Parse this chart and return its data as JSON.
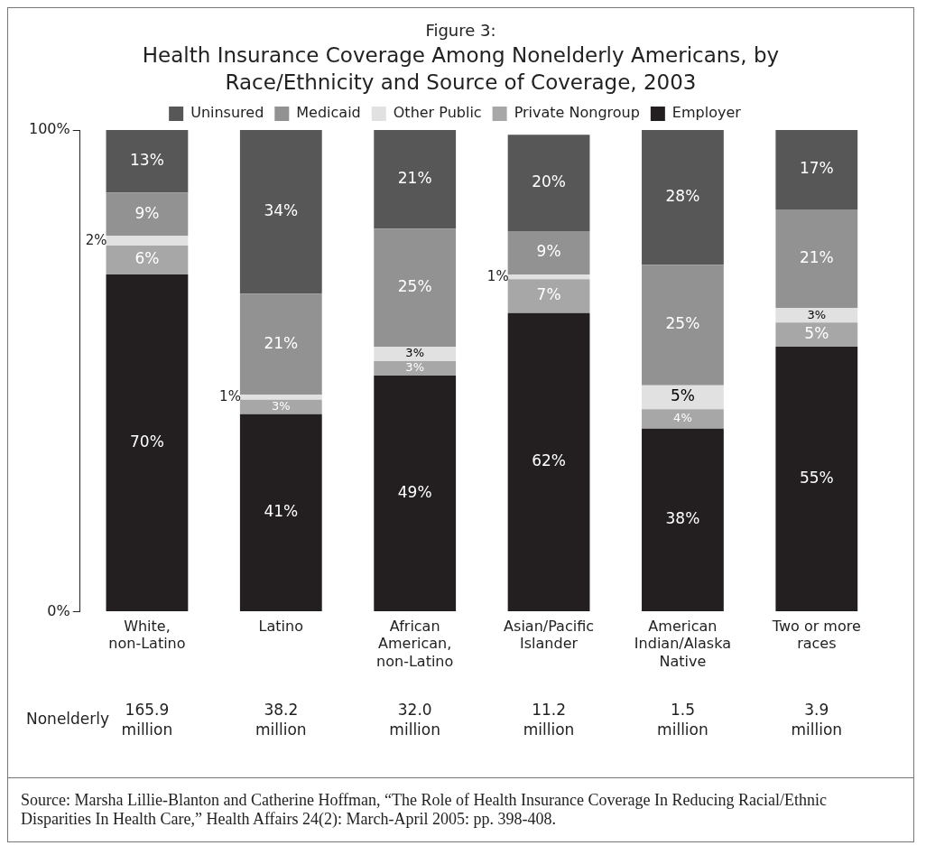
{
  "chart_data": {
    "type": "bar",
    "stacked": true,
    "subtitle": "Figure 3:",
    "title": "Health Insurance Coverage Among Nonelderly Americans, by Race/Ethnicity and Source of Coverage, 2003",
    "categories": [
      "White, non-Latino",
      "Latino",
      "African American, non-Latino",
      "Asian/Pacific Islander",
      "American Indian/Alaska Native",
      "Two or more races"
    ],
    "series": [
      {
        "name": "Employer",
        "color": "#231f20",
        "values": [
          70,
          41,
          49,
          62,
          38,
          55
        ],
        "value_labels": [
          "70%",
          "41%",
          "49%",
          "62%",
          "38%",
          "55%"
        ]
      },
      {
        "name": "Private Nongroup",
        "color": "#a7a7a7",
        "values": [
          6,
          3,
          3,
          7,
          4,
          5
        ],
        "value_labels": [
          "6%",
          "3%",
          "3%",
          "7%",
          "4%",
          "5%"
        ]
      },
      {
        "name": "Other Public",
        "color": "#e1e1e1",
        "values": [
          2,
          1,
          3,
          1,
          5,
          3
        ],
        "value_labels": [
          "2%",
          "1%",
          "3%",
          "1%",
          "5%",
          "3%"
        ]
      },
      {
        "name": "Medicaid",
        "color": "#929292",
        "values": [
          9,
          21,
          24.5,
          9,
          25,
          20.5
        ],
        "value_labels": [
          "9%",
          "21%",
          "25%",
          "9%",
          "25%",
          "21%"
        ]
      },
      {
        "name": "Uninsured",
        "color": "#575757",
        "values": [
          13,
          34,
          20.5,
          20,
          28,
          16.5
        ],
        "value_labels": [
          "13%",
          "34%",
          "21%",
          "20%",
          "28%",
          "17%"
        ]
      }
    ],
    "ylim": [
      0,
      100
    ],
    "yticks": [
      {
        "value": 0,
        "label": "0%"
      },
      {
        "value": 100,
        "label": "100%"
      }
    ],
    "grid": false,
    "legend": "top",
    "annotations": [
      "Nonelderly",
      "165.9 million",
      "38.2 million",
      "32.0 million",
      "11.2 million",
      "1.5 million",
      "3.9 million",
      "Source: Marsha Lillie-Blanton and Catherine Hoffman, “The Role of Health Insurance Coverage In Reducing Racial/Ethnic Disparities In Health Care,” Health Affairs 24(2): March-April 2005: pp. 398-408."
    ]
  }
}
